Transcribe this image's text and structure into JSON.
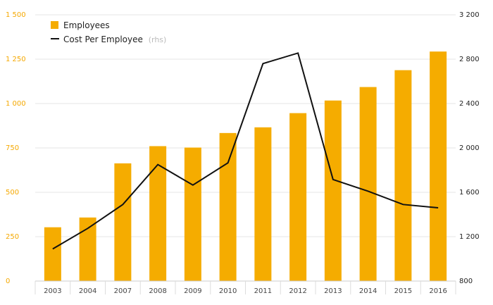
{
  "chart_data": {
    "type": "bar",
    "categories": [
      "2003",
      "2004",
      "2007",
      "2008",
      "2009",
      "2010",
      "2011",
      "2012",
      "2013",
      "2014",
      "2015",
      "2016"
    ],
    "series": [
      {
        "name": "Employees",
        "type": "bar",
        "axis": "left",
        "values": [
          303,
          358,
          663,
          760,
          752,
          834,
          866,
          946,
          1017,
          1093,
          1188,
          1293
        ]
      },
      {
        "name": "Cost Per Employee",
        "type": "line",
        "axis": "right",
        "values": [
          1090,
          1275,
          1490,
          1850,
          1665,
          1865,
          2760,
          2855,
          1715,
          1610,
          1490,
          1460
        ]
      }
    ],
    "left_axis": {
      "ylim": [
        0,
        1500
      ],
      "ticks": [
        0,
        250,
        500,
        750,
        1000,
        1250,
        1500
      ],
      "tick_labels": [
        "0",
        "250",
        "500",
        "750",
        "1 000",
        "1 250",
        "1 500"
      ]
    },
    "right_axis": {
      "ylim": [
        800,
        3200
      ],
      "ticks": [
        800,
        1200,
        1600,
        2000,
        2400,
        2800,
        3200
      ],
      "tick_labels": [
        "800",
        "1 200",
        "1 600",
        "2 000",
        "2 400",
        "2 800",
        "3 200"
      ]
    },
    "legend": {
      "position": "top-left",
      "entries": [
        {
          "label": "Employees",
          "suffix": ""
        },
        {
          "label": "Cost Per Employee",
          "suffix": "(rhs)"
        }
      ]
    },
    "grid": true,
    "colors": {
      "bar": "#f5ac00",
      "line": "#111111",
      "grid": "#e6e6e6",
      "left_ticks": "#f5a800",
      "right_ticks": "#222222"
    }
  }
}
